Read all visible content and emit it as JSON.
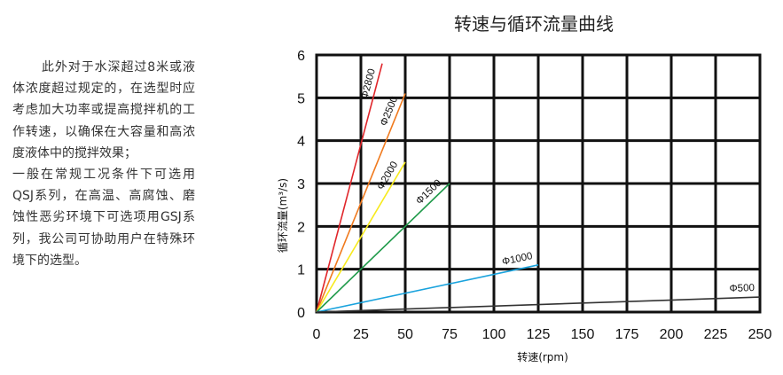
{
  "paragraph": {
    "first": "此外对于水深超过8米或液体浓度超过规定的，在选型时应考虑加大功率或提高搅拌机的工作转速，以确保在大容量和高浓度液体中的搅拌效果；",
    "second": "一般在常规工况条件下可选用QSJ系列，在高温、高腐蚀、磨蚀性恶劣环境下可选项用GSJ系列，我公司可协助用户在特殊环境下的选型。"
  },
  "chart_data": {
    "type": "line",
    "title": "转速与循环流量曲线",
    "xlabel": "转速(rpm)",
    "ylabel": "循环流量(m³/s)",
    "xlim": [
      0,
      250
    ],
    "ylim": [
      0,
      6
    ],
    "x_ticks": [
      0,
      25,
      50,
      75,
      100,
      125,
      150,
      175,
      200,
      225,
      250
    ],
    "y_ticks": [
      0,
      1,
      2,
      3,
      4,
      5,
      6
    ],
    "grid": true,
    "series": [
      {
        "name": "Φ2800",
        "color": "#e0262b",
        "x": [
          0,
          37
        ],
        "y": [
          0,
          5.8
        ]
      },
      {
        "name": "Φ2500",
        "color": "#f07a1e",
        "x": [
          0,
          50
        ],
        "y": [
          0,
          5.1
        ]
      },
      {
        "name": "Φ2000",
        "color": "#f7ea1d",
        "x": [
          0,
          50
        ],
        "y": [
          0,
          3.5
        ]
      },
      {
        "name": "Φ1500",
        "color": "#1f9a4a",
        "x": [
          0,
          75
        ],
        "y": [
          0,
          3.0
        ]
      },
      {
        "name": "Φ1000",
        "color": "#1aa3dd",
        "x": [
          0,
          125
        ],
        "y": [
          0,
          1.1
        ]
      },
      {
        "name": "Φ500",
        "color": "#333333",
        "x": [
          0,
          250
        ],
        "y": [
          0,
          0.35
        ]
      }
    ]
  }
}
